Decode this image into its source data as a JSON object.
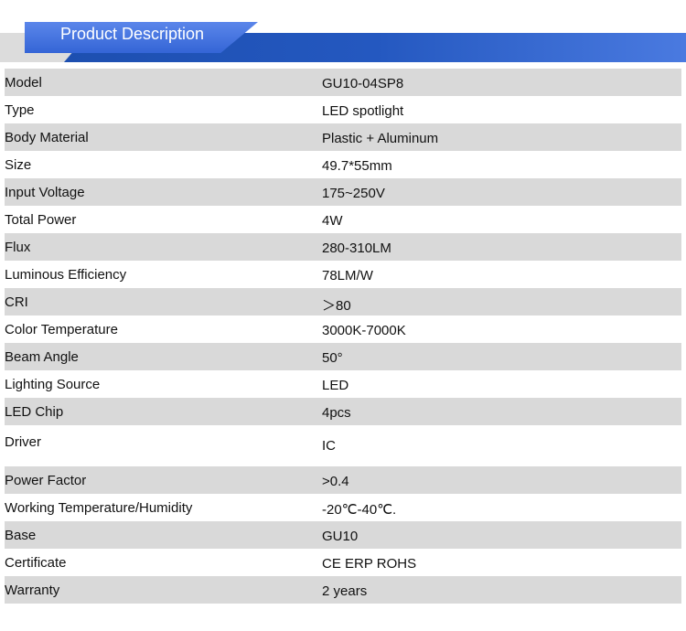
{
  "header": {
    "title": "Product Description",
    "accent_color": "#2458c0"
  },
  "specs": [
    {
      "label": "Model",
      "value": "GU10-04SP8"
    },
    {
      "label": "Type",
      "value": "LED spotlight"
    },
    {
      "label": "Body Material",
      "value": "Plastic + Aluminum"
    },
    {
      "label": "Size",
      "value": "49.7*55mm"
    },
    {
      "label": "Input Voltage",
      "value": "175~250V"
    },
    {
      "label": "Total Power",
      "value": "4W"
    },
    {
      "label": "Flux",
      "value": "280-310LM"
    },
    {
      "label": "Luminous Efficiency",
      "value": "78LM/W"
    },
    {
      "label": "CRI",
      "value": "＞80"
    },
    {
      "label": "Color Temperature",
      "value": "3000K-7000K"
    },
    {
      "label": "Beam Angle",
      "value": "50°"
    },
    {
      "label": "Lighting Source",
      "value": "LED"
    },
    {
      "label": "LED Chip",
      "value": "4pcs"
    },
    {
      "label": "Driver",
      "value": "IC"
    },
    {
      "label": "Power Factor",
      "value": ">0.4"
    },
    {
      "label": "Working Temperature/Humidity",
      "value": "-20℃-40℃."
    },
    {
      "label": "Base",
      "value": "GU10"
    },
    {
      "label": "Certificate",
      "value": "CE ERP ROHS"
    },
    {
      "label": "Warranty",
      "value": "2 years"
    }
  ]
}
